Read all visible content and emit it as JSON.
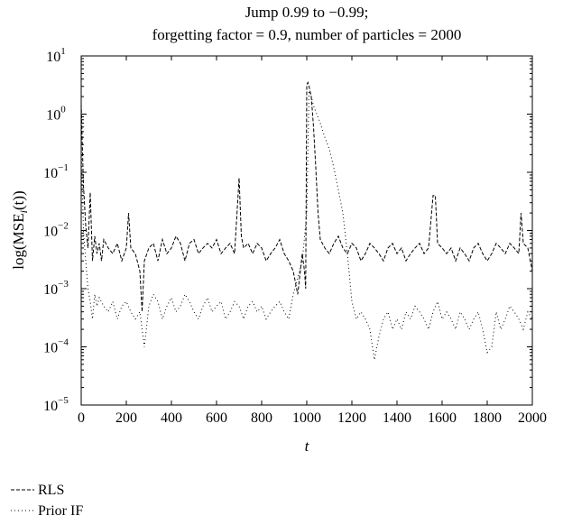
{
  "chart_data": {
    "type": "line",
    "title_lines": [
      "Jump 0.99 to −0.99;",
      "forgetting factor = 0.9, number of particles = 2000"
    ],
    "xlabel": "t",
    "ylabel_parts": {
      "prefix": "log(MSE",
      "subscript": "i",
      "suffix": "(t))"
    },
    "xlim": [
      0,
      2000
    ],
    "ylim": [
      1e-05,
      10
    ],
    "yscale": "log",
    "grid": false,
    "legend_position": "below",
    "x_ticks": [
      0,
      200,
      400,
      600,
      800,
      1000,
      1200,
      1400,
      1600,
      1800,
      2000
    ],
    "x_tick_labels": [
      "0",
      "200",
      "400",
      "600",
      "800",
      "1000",
      "1200",
      "1400",
      "1600",
      "1800",
      "2000"
    ],
    "y_ticks": [
      1e-05,
      0.0001,
      0.001,
      0.01,
      0.1,
      1,
      10
    ],
    "y_tick_labels": [
      {
        "base": "10",
        "exp": "−5"
      },
      {
        "base": "10",
        "exp": "−4"
      },
      {
        "base": "10",
        "exp": "−3"
      },
      {
        "base": "10",
        "exp": "−2"
      },
      {
        "base": "10",
        "exp": "−1"
      },
      {
        "base": "10",
        "exp": "0"
      },
      {
        "base": "10",
        "exp": "1"
      }
    ],
    "series": [
      {
        "name": "RLS",
        "style": "dashed",
        "color": "#000000",
        "x": [
          0,
          10,
          20,
          30,
          40,
          50,
          60,
          70,
          80,
          90,
          100,
          120,
          140,
          160,
          180,
          200,
          210,
          220,
          240,
          260,
          270,
          280,
          300,
          320,
          340,
          360,
          380,
          400,
          420,
          440,
          460,
          480,
          500,
          520,
          540,
          560,
          580,
          600,
          620,
          640,
          660,
          680,
          700,
          710,
          720,
          740,
          760,
          780,
          800,
          820,
          840,
          860,
          880,
          900,
          920,
          940,
          960,
          980,
          990,
          995,
          1000,
          1005,
          1010,
          1020,
          1030,
          1040,
          1050,
          1060,
          1080,
          1100,
          1120,
          1140,
          1160,
          1180,
          1200,
          1220,
          1240,
          1260,
          1280,
          1300,
          1320,
          1340,
          1360,
          1380,
          1400,
          1420,
          1440,
          1460,
          1480,
          1500,
          1520,
          1540,
          1560,
          1570,
          1580,
          1600,
          1620,
          1640,
          1660,
          1680,
          1700,
          1720,
          1740,
          1760,
          1780,
          1800,
          1820,
          1840,
          1860,
          1880,
          1900,
          1920,
          1940,
          1950,
          1960,
          1980,
          2000
        ],
        "values": [
          1.5,
          0.06,
          0.012,
          0.005,
          0.045,
          0.003,
          0.008,
          0.004,
          0.006,
          0.003,
          0.007,
          0.005,
          0.004,
          0.006,
          0.003,
          0.005,
          0.02,
          0.005,
          0.004,
          0.002,
          0.0004,
          0.003,
          0.005,
          0.006,
          0.003,
          0.007,
          0.004,
          0.005,
          0.008,
          0.006,
          0.003,
          0.006,
          0.007,
          0.004,
          0.005,
          0.006,
          0.005,
          0.007,
          0.004,
          0.005,
          0.006,
          0.004,
          0.08,
          0.008,
          0.005,
          0.006,
          0.004,
          0.006,
          0.005,
          0.003,
          0.004,
          0.005,
          0.007,
          0.004,
          0.003,
          0.002,
          0.0008,
          0.004,
          0.002,
          0.001,
          3.2,
          3.5,
          3.0,
          2.0,
          0.6,
          0.12,
          0.02,
          0.007,
          0.005,
          0.004,
          0.006,
          0.008,
          0.005,
          0.004,
          0.006,
          0.005,
          0.003,
          0.004,
          0.006,
          0.005,
          0.004,
          0.003,
          0.005,
          0.006,
          0.004,
          0.005,
          0.003,
          0.004,
          0.005,
          0.006,
          0.004,
          0.005,
          0.04,
          0.04,
          0.006,
          0.005,
          0.004,
          0.005,
          0.003,
          0.005,
          0.004,
          0.003,
          0.005,
          0.006,
          0.004,
          0.003,
          0.004,
          0.006,
          0.005,
          0.004,
          0.006,
          0.005,
          0.004,
          0.02,
          0.006,
          0.005,
          0.002
        ]
      },
      {
        "name": "Prior IF",
        "style": "dotted",
        "color": "#000000",
        "x": [
          0,
          10,
          20,
          30,
          40,
          50,
          60,
          70,
          80,
          100,
          120,
          140,
          160,
          180,
          200,
          220,
          240,
          260,
          280,
          300,
          320,
          340,
          360,
          380,
          400,
          420,
          440,
          460,
          480,
          500,
          520,
          540,
          560,
          580,
          600,
          620,
          640,
          660,
          680,
          700,
          720,
          740,
          760,
          780,
          800,
          820,
          840,
          860,
          880,
          900,
          920,
          940,
          960,
          980,
          1000,
          1010,
          1020,
          1030,
          1040,
          1060,
          1080,
          1100,
          1120,
          1140,
          1160,
          1180,
          1200,
          1220,
          1240,
          1260,
          1280,
          1300,
          1320,
          1340,
          1360,
          1380,
          1400,
          1420,
          1440,
          1460,
          1480,
          1500,
          1520,
          1540,
          1560,
          1580,
          1600,
          1620,
          1640,
          1660,
          1680,
          1700,
          1720,
          1740,
          1760,
          1780,
          1800,
          1820,
          1840,
          1860,
          1880,
          1900,
          1920,
          1940,
          1960,
          1980,
          2000
        ],
        "values": [
          0.3,
          0.01,
          0.003,
          0.001,
          0.0006,
          0.0003,
          0.0008,
          0.0005,
          0.0007,
          0.0005,
          0.0004,
          0.0006,
          0.0003,
          0.0005,
          0.0006,
          0.0004,
          0.0003,
          0.0004,
          0.0001,
          0.0005,
          0.0008,
          0.0006,
          0.0003,
          0.0005,
          0.0007,
          0.0004,
          0.0005,
          0.0008,
          0.0006,
          0.0004,
          0.0003,
          0.0005,
          0.0007,
          0.0004,
          0.0005,
          0.0006,
          0.0003,
          0.0004,
          0.0006,
          0.0005,
          0.0003,
          0.0005,
          0.0006,
          0.0004,
          0.0005,
          0.0003,
          0.0004,
          0.0005,
          0.0006,
          0.0004,
          0.0003,
          0.0008,
          0.0015,
          0.003,
          0.02,
          2.5,
          2.0,
          1.4,
          1.1,
          0.7,
          0.4,
          0.25,
          0.12,
          0.05,
          0.02,
          0.004,
          0.0006,
          0.0003,
          0.0004,
          0.0003,
          0.0002,
          6e-05,
          0.00015,
          0.0003,
          0.0004,
          0.0002,
          0.0003,
          0.0002,
          0.0004,
          0.0003,
          0.0005,
          0.0004,
          0.0003,
          0.0002,
          0.0004,
          0.0006,
          0.0003,
          0.0004,
          0.0003,
          0.0002,
          0.0004,
          0.0003,
          0.0002,
          0.0003,
          0.0004,
          0.0002,
          8e-05,
          0.0001,
          0.0004,
          0.0002,
          0.0003,
          0.0005,
          0.0004,
          0.0003,
          0.0002,
          0.0004,
          0.0003
        ]
      }
    ]
  }
}
